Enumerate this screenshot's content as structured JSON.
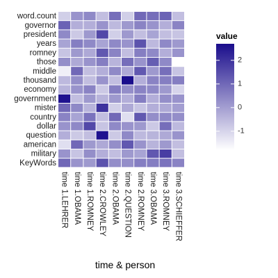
{
  "chart_data": {
    "type": "heatmap",
    "xlabel": "time & person",
    "ylabel": "",
    "x_categories": [
      "time 1.LEHRER",
      "time 1.OBAMA",
      "time 1.ROMNEY",
      "time 2.CROWLEY",
      "time 2.OBAMA",
      "time 2.QUESTION",
      "time 2.ROMNEY",
      "time 3.OBAMA",
      "time 3.ROMNEY",
      "time 3.SCHIEFFER"
    ],
    "y_categories": [
      "word.count",
      "governor",
      "president",
      "years",
      "romney",
      "those",
      "middle",
      "thousand",
      "economy",
      "government",
      "mister",
      "country",
      "dollar",
      "question",
      "american",
      "military",
      "KeyWords"
    ],
    "values": [
      [
        -0.9,
        0.2,
        0.4,
        -0.6,
        0.9,
        -0.9,
        1.0,
        0.9,
        1.1,
        -0.6
      ],
      [
        1.1,
        -0.3,
        -0.3,
        0.2,
        -0.5,
        0.1,
        0.5,
        0.2,
        -0.3,
        0.5
      ],
      [
        0.4,
        -0.8,
        0.1,
        1.6,
        -0.9,
        0.1,
        -0.6,
        -0.1,
        -0.6,
        -0.7
      ],
      [
        -0.1,
        0.6,
        0.4,
        -0.1,
        0.4,
        0.2,
        1.4,
        -0.5,
        0.4,
        0.1
      ],
      [
        -0.7,
        0.1,
        -0.2,
        1.3,
        0.5,
        -0.6,
        0.6,
        0.4,
        -0.3,
        0.2
      ],
      [
        0.3,
        -0.2,
        0.2,
        0.6,
        -0.4,
        0.9,
        0.2,
        1.2,
        0.4,
        -1.8
      ],
      [
        -1.5,
        1.0,
        -0.6,
        -0.3,
        0.4,
        -0.2,
        1.3,
        0.1,
        0.9,
        -0.7
      ],
      [
        -0.5,
        0.3,
        -0.6,
        0.2,
        -0.6,
        2.7,
        -0.3,
        0.5,
        0.6,
        0.6
      ],
      [
        -0.4,
        0.2,
        0.5,
        -0.8,
        0.6,
        0.3,
        0.5,
        0.4,
        0.1,
        -1.0
      ],
      [
        2.6,
        -0.6,
        0.1,
        -0.4,
        0.1,
        -0.3,
        0.6,
        -0.3,
        0.3,
        0.2
      ],
      [
        1.0,
        0.4,
        -0.4,
        2.0,
        -0.9,
        -0.2,
        -0.7,
        -0.3,
        -0.2,
        0.0
      ],
      [
        0.5,
        -0.1,
        0.8,
        -0.6,
        1.0,
        -1.2,
        1.3,
        0.3,
        0.4,
        0.3
      ],
      [
        0.2,
        0.4,
        1.6,
        -0.7,
        0.4,
        0.2,
        0.1,
        -0.8,
        0.9,
        -0.5
      ],
      [
        -0.3,
        -0.8,
        -0.6,
        2.6,
        -0.8,
        0.4,
        -0.5,
        -0.4,
        -0.2,
        0.2
      ],
      [
        -1.2,
        1.0,
        0.1,
        -0.2,
        0.3,
        1.3,
        0.2,
        -0.4,
        0.1,
        -0.6
      ],
      [
        0.2,
        -0.7,
        0.3,
        -0.3,
        -0.6,
        0.1,
        -0.1,
        1.3,
        1.8,
        -0.6
      ],
      [
        1.0,
        0.2,
        0.1,
        1.4,
        0.3,
        0.3,
        0.6,
        0.6,
        0.8,
        0.5
      ]
    ],
    "colorbar": {
      "title": "value",
      "range": [
        -1.8,
        2.7
      ],
      "ticks": [
        -1,
        0,
        1,
        2
      ],
      "low_color": "#ffffff",
      "high_color": "#1a0d8c"
    },
    "grid": false,
    "legend_position": "right"
  }
}
